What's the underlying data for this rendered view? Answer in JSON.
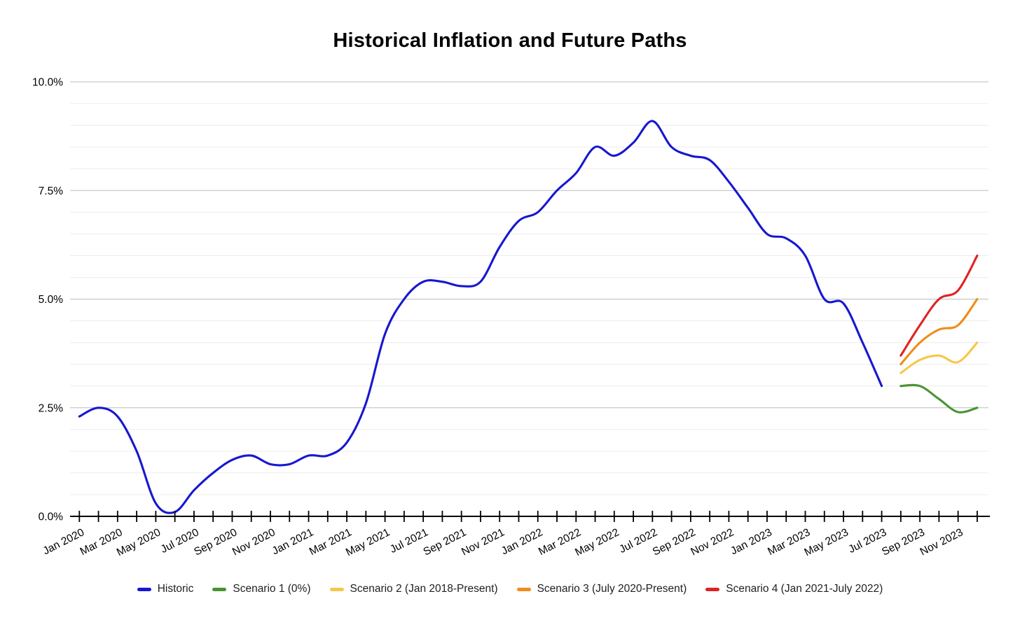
{
  "chart": {
    "title": "Historical Inflation and Future Paths"
  },
  "chart_data": {
    "type": "line",
    "title": "Historical Inflation and Future Paths",
    "xlabel": "",
    "ylabel": "",
    "ylim": [
      0,
      10
    ],
    "y_tick_labels": [
      "0.0%",
      "2.5%",
      "5.0%",
      "7.5%",
      "10.0%"
    ],
    "y_tick_values": [
      0,
      2.5,
      5.0,
      7.5,
      10.0
    ],
    "y_minor_step": 0.5,
    "grid": "on",
    "legend_position": "bottom",
    "total_months": 48,
    "months_between_labels": 2,
    "x_labels": [
      "Jan 2020",
      "Mar 2020",
      "May 2020",
      "Jul 2020",
      "Sep 2020",
      "Nov 2020",
      "Jan 2021",
      "Mar 2021",
      "May 2021",
      "Jul 2021",
      "Sep 2021",
      "Nov 2021",
      "Jan 2022",
      "Mar 2022",
      "May 2022",
      "Jul 2022",
      "Sep 2022",
      "Nov 2022",
      "Jan 2023",
      "Mar 2023",
      "May 2023",
      "Jul 2023",
      "Sep 2023",
      "Nov 2023"
    ],
    "series": [
      {
        "name": "Historic",
        "color": "#1717d1",
        "start_month": 0,
        "start_label": "Jan 2020",
        "end_label": "Jul 2023",
        "values": [
          2.3,
          2.5,
          2.3,
          1.5,
          0.3,
          0.1,
          0.6,
          1.0,
          1.3,
          1.4,
          1.2,
          1.2,
          1.4,
          1.4,
          1.7,
          2.6,
          4.2,
          5.0,
          5.4,
          5.4,
          5.3,
          5.4,
          6.2,
          6.8,
          7.0,
          7.5,
          7.9,
          8.5,
          8.3,
          8.6,
          9.1,
          8.5,
          8.3,
          8.2,
          7.7,
          7.1,
          6.5,
          6.4,
          6.0,
          5.0,
          4.9,
          4.0,
          3.0
        ]
      },
      {
        "name": "Scenario 1 (0%)",
        "color": "#4a9335",
        "start_month": 43,
        "start_label": "Aug 2023",
        "end_label": "Dec 2023",
        "values": [
          3.0,
          3.0,
          2.7,
          2.4,
          2.5
        ]
      },
      {
        "name": "Scenario 2 (Jan 2018-Present)",
        "color": "#f7c74a",
        "start_month": 43,
        "start_label": "Aug 2023",
        "end_label": "Dec 2023",
        "values": [
          3.3,
          3.6,
          3.7,
          3.55,
          4.0
        ]
      },
      {
        "name": "Scenario 3 (July 2020-Present)",
        "color": "#ef8c1a",
        "start_month": 43,
        "start_label": "Aug 2023",
        "end_label": "Dec 2023",
        "values": [
          3.5,
          4.0,
          4.3,
          4.4,
          5.0
        ]
      },
      {
        "name": "Scenario 4 (Jan 2021-July 2022)",
        "color": "#e02222",
        "start_month": 43,
        "start_label": "Aug 2023",
        "end_label": "Dec 2023",
        "values": [
          3.7,
          4.4,
          5.0,
          5.2,
          6.0
        ]
      }
    ]
  },
  "colors": {
    "background": "#ffffff",
    "major_grid": "#bdbdbd",
    "minor_grid": "#ececec",
    "axis": "#000000",
    "tick_label": "#000000"
  }
}
